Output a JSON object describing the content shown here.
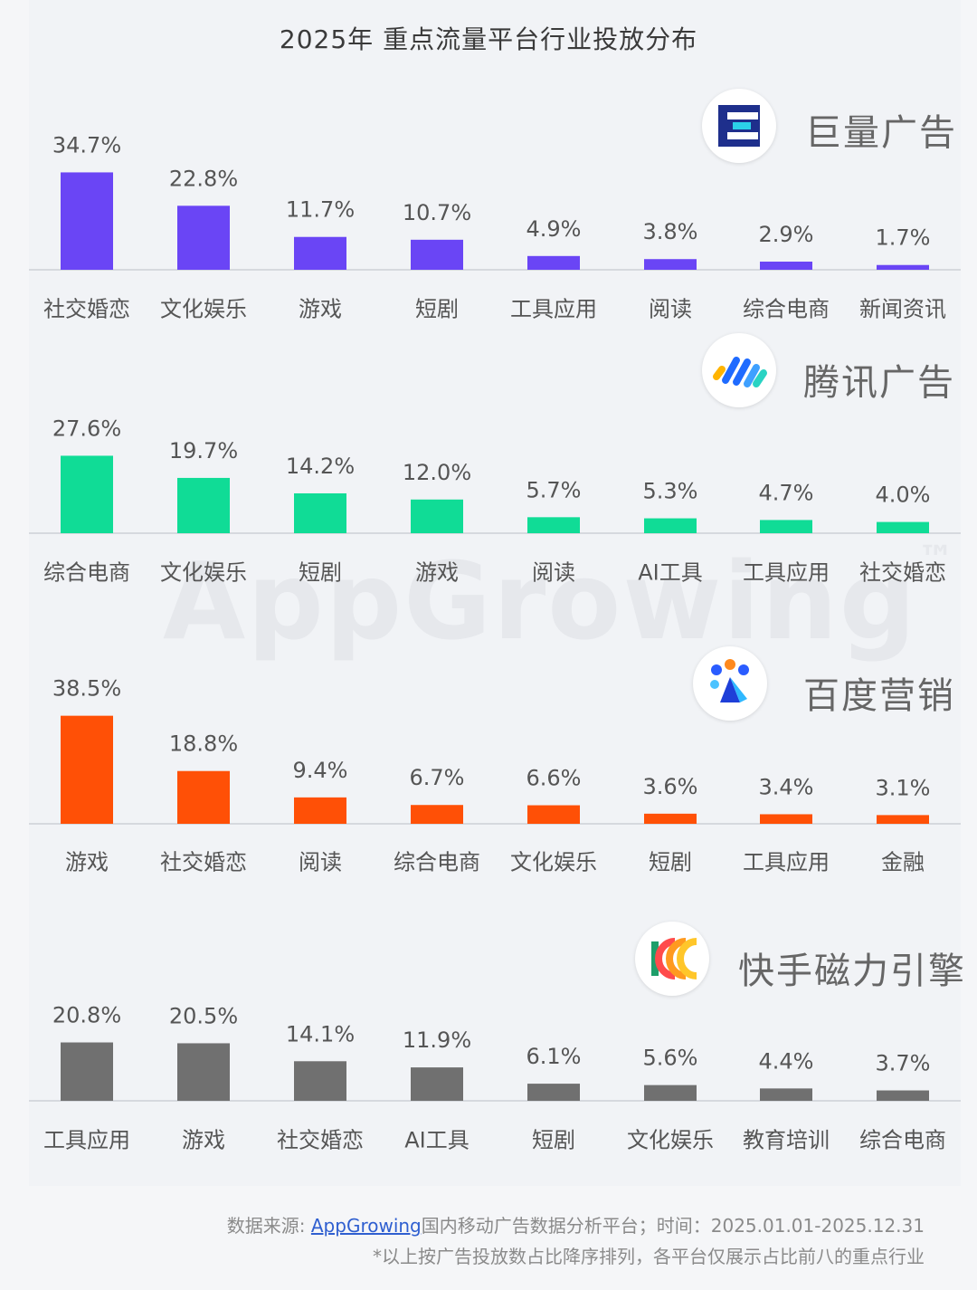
{
  "title": "2025年 重点流量平台行业投放分布",
  "watermark": "AppGrowing",
  "platforms": [
    {
      "name": "巨量广告",
      "logo_icon": "juliang-logo-icon",
      "color": "#6a45f5",
      "chart_data": {
        "type": "bar",
        "categories": [
          "社交婚恋",
          "文化娱乐",
          "游戏",
          "短剧",
          "工具应用",
          "阅读",
          "综合电商",
          "新闻资讯"
        ],
        "values": [
          34.7,
          22.8,
          11.7,
          10.7,
          4.9,
          3.8,
          2.9,
          1.7
        ],
        "labels": [
          "34.7%",
          "22.8%",
          "11.7%",
          "10.7%",
          "4.9%",
          "3.8%",
          "2.9%",
          "1.7%"
        ],
        "unit": "%"
      }
    },
    {
      "name": "腾讯广告",
      "logo_icon": "tencent-ads-logo-icon",
      "color": "#10dc96",
      "chart_data": {
        "type": "bar",
        "categories": [
          "综合电商",
          "文化娱乐",
          "短剧",
          "游戏",
          "阅读",
          "AI工具",
          "工具应用",
          "社交婚恋"
        ],
        "values": [
          27.6,
          19.7,
          14.2,
          12.0,
          5.7,
          5.3,
          4.7,
          4.0
        ],
        "labels": [
          "27.6%",
          "19.7%",
          "14.2%",
          "12.0%",
          "5.7%",
          "5.3%",
          "4.7%",
          "4.0%"
        ],
        "unit": "%"
      }
    },
    {
      "name": "百度营销",
      "logo_icon": "baidu-marketing-logo-icon",
      "color": "#ff5006",
      "chart_data": {
        "type": "bar",
        "categories": [
          "游戏",
          "社交婚恋",
          "阅读",
          "综合电商",
          "文化娱乐",
          "短剧",
          "工具应用",
          "金融"
        ],
        "values": [
          38.5,
          18.8,
          9.4,
          6.7,
          6.6,
          3.6,
          3.4,
          3.1
        ],
        "labels": [
          "38.5%",
          "18.8%",
          "9.4%",
          "6.7%",
          "6.6%",
          "3.6%",
          "3.4%",
          "3.1%"
        ],
        "unit": "%"
      }
    },
    {
      "name": "快手磁力引擎",
      "logo_icon": "kuaishou-magnetic-logo-icon",
      "color": "#707070",
      "chart_data": {
        "type": "bar",
        "categories": [
          "工具应用",
          "游戏",
          "社交婚恋",
          "AI工具",
          "短剧",
          "文化娱乐",
          "教育培训",
          "综合电商"
        ],
        "values": [
          20.8,
          20.5,
          14.1,
          11.9,
          6.1,
          5.6,
          4.4,
          3.7
        ],
        "labels": [
          "20.8%",
          "20.5%",
          "14.1%",
          "11.9%",
          "6.1%",
          "5.6%",
          "4.4%",
          "3.7%"
        ],
        "unit": "%"
      }
    }
  ],
  "footer": {
    "source_prefix": "数据来源: ",
    "source_link": "AppGrowing",
    "source_suffix": "国内移动广告数据分析平台；时间：2025.01.01-2025.12.31",
    "note": "*以上按广告投放数占比降序排列，各平台仅展示占比前八的重点行业"
  }
}
